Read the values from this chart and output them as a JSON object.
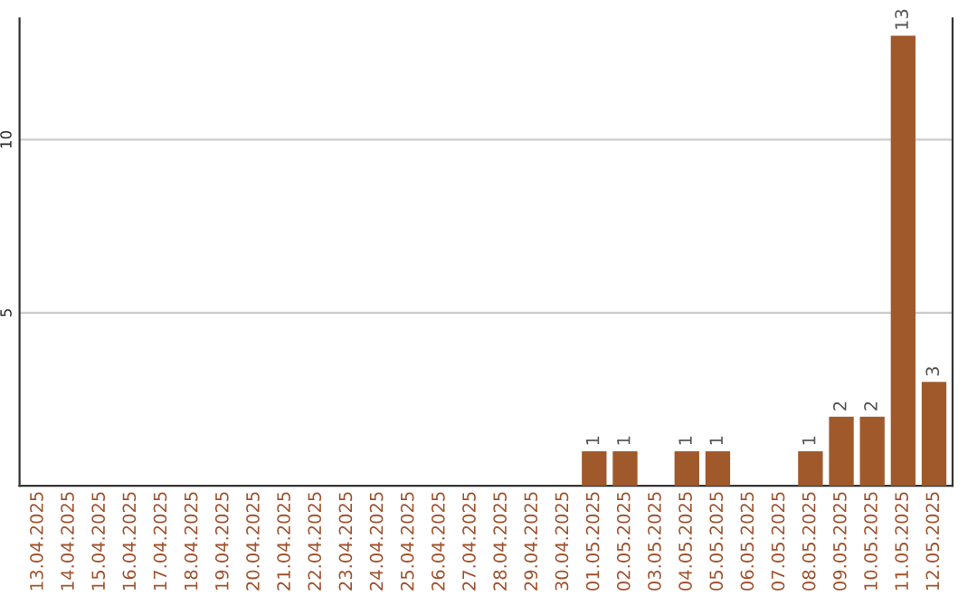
{
  "chart_data": {
    "type": "bar",
    "categories": [
      "13.04.2025",
      "14.04.2025",
      "15.04.2025",
      "16.04.2025",
      "17.04.2025",
      "18.04.2025",
      "19.04.2025",
      "20.04.2025",
      "21.04.2025",
      "22.04.2025",
      "23.04.2025",
      "24.04.2025",
      "25.04.2025",
      "26.04.2025",
      "27.04.2025",
      "28.04.2025",
      "29.04.2025",
      "30.04.2025",
      "01.05.2025",
      "02.05.2025",
      "03.05.2025",
      "04.05.2025",
      "05.05.2025",
      "06.05.2025",
      "07.05.2025",
      "08.05.2025",
      "09.05.2025",
      "10.05.2025",
      "11.05.2025",
      "12.05.2025"
    ],
    "values": [
      0,
      0,
      0,
      0,
      0,
      0,
      0,
      0,
      0,
      0,
      0,
      0,
      0,
      0,
      0,
      0,
      0,
      0,
      1,
      1,
      0,
      1,
      1,
      0,
      0,
      1,
      2,
      2,
      13,
      3
    ],
    "value_labels": [
      null,
      null,
      null,
      null,
      null,
      null,
      null,
      null,
      null,
      null,
      null,
      null,
      null,
      null,
      null,
      null,
      null,
      null,
      "1",
      "1",
      null,
      "1",
      "1",
      null,
      null,
      "1",
      "2",
      "2",
      "13",
      "3"
    ],
    "color": "#a0592a",
    "ylim": [
      0,
      13.5
    ],
    "yticks": [
      5,
      10
    ],
    "grid": "y",
    "legend": false
  }
}
